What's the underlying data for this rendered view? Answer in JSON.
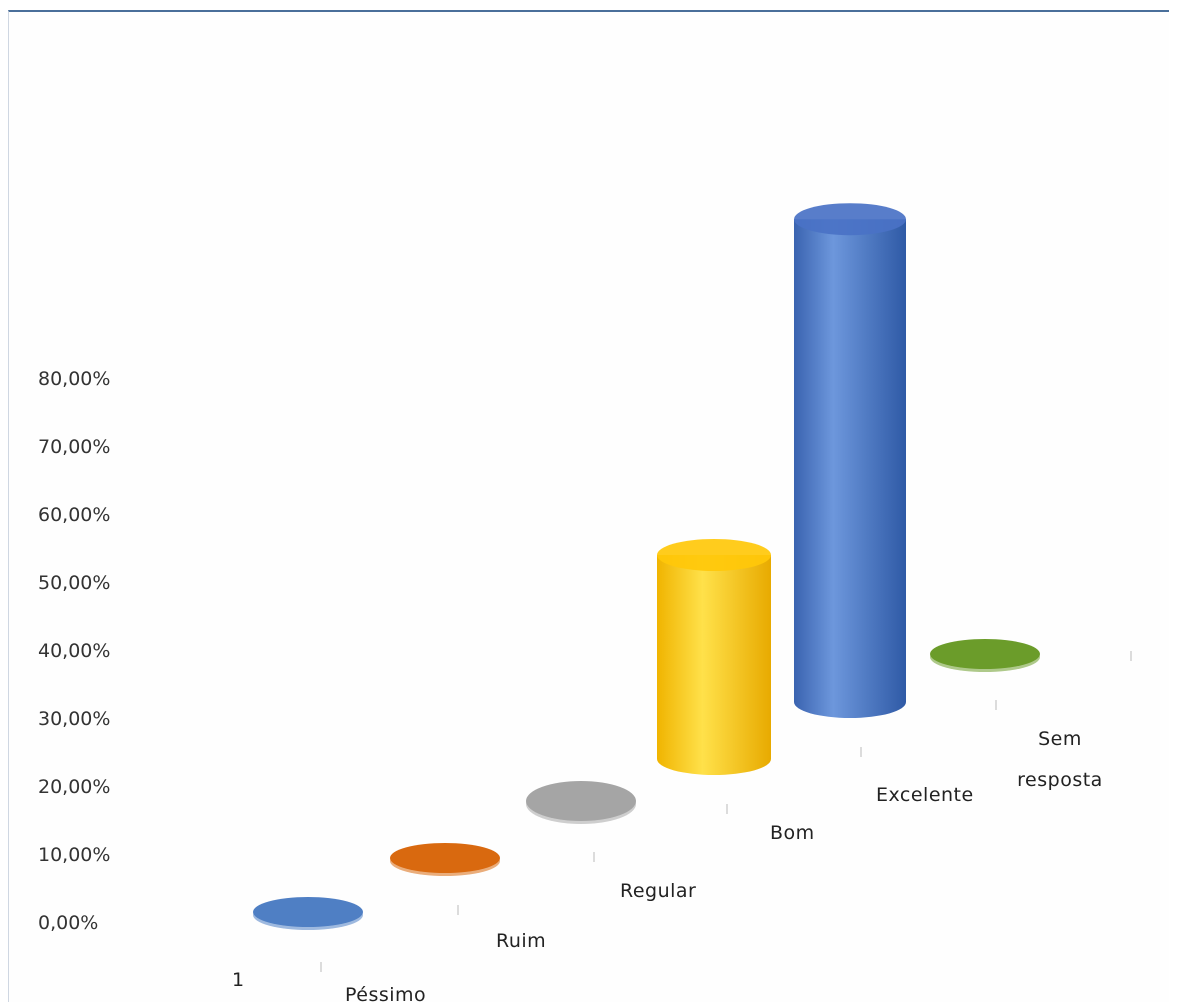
{
  "chart_data": {
    "type": "bar",
    "style": "3d-cylinder",
    "categories": [
      "Péssimo",
      "Ruim",
      "Regular",
      "Bom",
      "Excelente",
      "Sem resposta"
    ],
    "category_label_lines": [
      [
        "Péssimo"
      ],
      [
        "Ruim"
      ],
      [
        "Regular"
      ],
      [
        "Bom"
      ],
      [
        "Excelente"
      ],
      [
        "Sem",
        "resposta"
      ]
    ],
    "series": [
      {
        "name": "1",
        "values": [
          0,
          0,
          0,
          0.3,
          0.71,
          0
        ],
        "colors": [
          "#4f7fc4",
          "#d9690f",
          "#a5a5a5",
          "#ffc80a",
          "#4a72c6",
          "#6b9c2a"
        ]
      }
    ],
    "series_axis_label": "1",
    "y_ticks": [
      "0,00%",
      "10,00%",
      "20,00%",
      "30,00%",
      "40,00%",
      "50,00%",
      "60,00%",
      "70,00%",
      "80,00%"
    ],
    "ylim": [
      0,
      0.8
    ],
    "grid": false,
    "title": "",
    "xlabel": "",
    "ylabel": ""
  }
}
